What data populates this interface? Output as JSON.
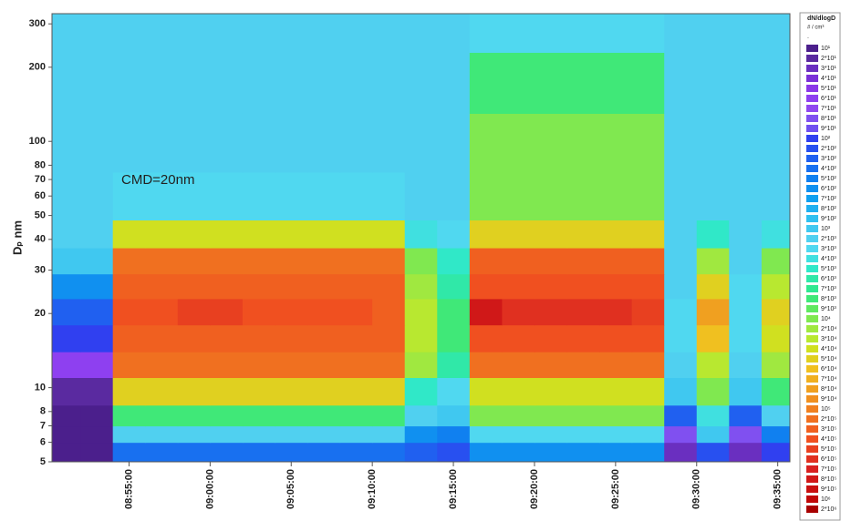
{
  "chart_data": {
    "type": "heatmap",
    "annotation": "CMD=20nm",
    "ylabel": "Dₚ nm",
    "log_y": true,
    "xlim": [
      "08:50:15",
      "09:35:45"
    ],
    "ylim": [
      5,
      330
    ],
    "xticks": [
      "08:55:00",
      "09:00:00",
      "09:05:00",
      "09:10:00",
      "09:15:00",
      "09:20:00",
      "09:25:00",
      "09:30:00",
      "09:35:00"
    ],
    "yticks": [
      5,
      6,
      7,
      8,
      10,
      20,
      30,
      40,
      50,
      60,
      70,
      80,
      100,
      200,
      300
    ],
    "x_edges": [
      "08:48:00",
      "08:50:00",
      "08:52:00",
      "08:54:00",
      "08:56:00",
      "08:58:00",
      "09:00:00",
      "09:02:00",
      "09:04:00",
      "09:06:00",
      "09:08:00",
      "09:10:00",
      "09:12:00",
      "09:14:00",
      "09:16:00",
      "09:18:00",
      "09:20:00",
      "09:22:00",
      "09:24:00",
      "09:26:00",
      "09:28:00",
      "09:30:00",
      "09:32:00",
      "09:34:00",
      "09:36:00"
    ],
    "y_edges": [
      5,
      6,
      7,
      8.5,
      11,
      14,
      18,
      23,
      29,
      37,
      48,
      75,
      130,
      230,
      330
    ],
    "z": [
      [
        15,
        15,
        15,
        400,
        400,
        400,
        400,
        400,
        400,
        400,
        400,
        400,
        300,
        200,
        600,
        600,
        600,
        600,
        600,
        600,
        30,
        200,
        30,
        100
      ],
      [
        15,
        15,
        15,
        2000,
        2000,
        2000,
        2000,
        2000,
        2000,
        2000,
        2000,
        2000,
        600,
        500,
        3000,
        3000,
        3000,
        3000,
        3000,
        3000,
        80,
        1000,
        80,
        500
      ],
      [
        15,
        15,
        15,
        8000,
        8000,
        8000,
        8000,
        8000,
        8000,
        8000,
        8000,
        8000,
        2000,
        1000,
        10000,
        10000,
        10000,
        10000,
        10000,
        10000,
        300,
        4000,
        300,
        2000
      ],
      [
        20,
        20,
        20,
        50000,
        50000,
        50000,
        50000,
        50000,
        50000,
        50000,
        50000,
        50000,
        5000,
        3000,
        40000,
        40000,
        40000,
        40000,
        40000,
        40000,
        1000,
        10000,
        1000,
        8000
      ],
      [
        60,
        60,
        60,
        200000,
        200000,
        200000,
        200000,
        200000,
        200000,
        200000,
        200000,
        200000,
        20000,
        6000,
        200000,
        200000,
        200000,
        200000,
        200000,
        200000,
        2000,
        30000,
        2000,
        20000
      ],
      [
        150,
        150,
        150,
        300000,
        300000,
        300000,
        300000,
        300000,
        300000,
        300000,
        300000,
        300000,
        30000,
        8000,
        400000,
        400000,
        400000,
        400000,
        400000,
        400000,
        3000,
        60000,
        3000,
        40000
      ],
      [
        300,
        300,
        300,
        400000,
        400000,
        500000,
        500000,
        400000,
        400000,
        400000,
        400000,
        300000,
        30000,
        8000,
        800000,
        600000,
        600000,
        600000,
        600000,
        500000,
        3000,
        80000,
        3000,
        50000
      ],
      [
        600,
        600,
        600,
        300000,
        300000,
        300000,
        300000,
        300000,
        300000,
        300000,
        300000,
        300000,
        20000,
        6000,
        400000,
        400000,
        400000,
        400000,
        400000,
        400000,
        2000,
        50000,
        3000,
        30000
      ],
      [
        1500,
        1500,
        1500,
        200000,
        200000,
        200000,
        200000,
        200000,
        200000,
        200000,
        200000,
        200000,
        10000,
        5000,
        300000,
        300000,
        300000,
        300000,
        300000,
        300000,
        2000,
        20000,
        2000,
        10000
      ],
      [
        2000,
        2000,
        2000,
        40000,
        40000,
        40000,
        40000,
        40000,
        40000,
        40000,
        40000,
        40000,
        4000,
        3000,
        50000,
        50000,
        50000,
        50000,
        50000,
        50000,
        2000,
        5000,
        2000,
        4000
      ],
      [
        2000,
        2000,
        2000,
        3000,
        3000,
        3000,
        3000,
        3000,
        3000,
        3000,
        3000,
        3000,
        2000,
        2000,
        10000,
        10000,
        10000,
        10000,
        10000,
        10000,
        2000,
        2000,
        2000,
        2000
      ],
      [
        2000,
        2000,
        2000,
        2000,
        2000,
        2000,
        2000,
        2000,
        2000,
        2000,
        2000,
        2000,
        2000,
        2000,
        10000,
        10000,
        10000,
        10000,
        10000,
        10000,
        2000,
        2000,
        2000,
        2000
      ],
      [
        2000,
        2000,
        2000,
        2000,
        2000,
        2000,
        2000,
        2000,
        2000,
        2000,
        2000,
        2000,
        2000,
        2000,
        8000,
        8000,
        8000,
        8000,
        8000,
        8000,
        2000,
        2000,
        2000,
        2000
      ],
      [
        2000,
        2000,
        2000,
        2000,
        2000,
        2000,
        2000,
        2000,
        2000,
        2000,
        2000,
        2000,
        2000,
        2000,
        3000,
        3000,
        3000,
        3000,
        3000,
        3000,
        2000,
        2000,
        2000,
        2000
      ]
    ],
    "colorbar": {
      "title": "dN/dlogD",
      "unit": "# / cm³",
      "mark": ".",
      "ticks": [
        {
          "value": 10,
          "label": "10¹"
        },
        {
          "value": 20,
          "label": "2*10¹"
        },
        {
          "value": 30,
          "label": "3*10¹"
        },
        {
          "value": 40,
          "label": "4*10¹"
        },
        {
          "value": 50,
          "label": "5*10¹"
        },
        {
          "value": 60,
          "label": "6*10¹"
        },
        {
          "value": 70,
          "label": "7*10¹"
        },
        {
          "value": 80,
          "label": "8*10¹"
        },
        {
          "value": 90,
          "label": "9*10¹"
        },
        {
          "value": 100,
          "label": "10²"
        },
        {
          "value": 200,
          "label": "2*10²"
        },
        {
          "value": 300,
          "label": "3*10²"
        },
        {
          "value": 400,
          "label": "4*10²"
        },
        {
          "value": 500,
          "label": "5*10²"
        },
        {
          "value": 600,
          "label": "6*10²"
        },
        {
          "value": 700,
          "label": "7*10²"
        },
        {
          "value": 800,
          "label": "8*10²"
        },
        {
          "value": 900,
          "label": "9*10²"
        },
        {
          "value": 1000,
          "label": "10³"
        },
        {
          "value": 2000,
          "label": "2*10³"
        },
        {
          "value": 3000,
          "label": "3*10³"
        },
        {
          "value": 4000,
          "label": "4*10³"
        },
        {
          "value": 5000,
          "label": "5*10³"
        },
        {
          "value": 6000,
          "label": "6*10³"
        },
        {
          "value": 7000,
          "label": "7*10³"
        },
        {
          "value": 8000,
          "label": "8*10³"
        },
        {
          "value": 9000,
          "label": "9*10³"
        },
        {
          "value": 10000,
          "label": "10⁴"
        },
        {
          "value": 20000,
          "label": "2*10⁴"
        },
        {
          "value": 30000,
          "label": "3*10⁴"
        },
        {
          "value": 40000,
          "label": "4*10⁴"
        },
        {
          "value": 50000,
          "label": "5*10⁴"
        },
        {
          "value": 60000,
          "label": "6*10⁴"
        },
        {
          "value": 70000,
          "label": "7*10⁴"
        },
        {
          "value": 80000,
          "label": "8*10⁴"
        },
        {
          "value": 90000,
          "label": "9*10⁴"
        },
        {
          "value": 100000,
          "label": "10⁵"
        },
        {
          "value": 200000,
          "label": "2*10⁵"
        },
        {
          "value": 300000,
          "label": "3*10⁵"
        },
        {
          "value": 400000,
          "label": "4*10⁵"
        },
        {
          "value": 500000,
          "label": "5*10⁵"
        },
        {
          "value": 600000,
          "label": "6*10⁵"
        },
        {
          "value": 700000,
          "label": "7*10⁵"
        },
        {
          "value": 800000,
          "label": "8*10⁵"
        },
        {
          "value": 900000,
          "label": "9*10⁵"
        },
        {
          "value": 1000000,
          "label": "10⁶"
        },
        {
          "value": 2000000,
          "label": "2*10⁶"
        }
      ],
      "colors": [
        "#4b1f8c",
        "#5a2aa0",
        "#6a2fc0",
        "#7a30d8",
        "#8a38e8",
        "#8e40f0",
        "#9048f0",
        "#8050f0",
        "#7050f0",
        "#3040f0",
        "#2850f0",
        "#2060f0",
        "#1870f0",
        "#1080f0",
        "#1090f0",
        "#10a0f0",
        "#20b0f0",
        "#30c0f0",
        "#40c8f0",
        "#50d0f0",
        "#50d8f0",
        "#40e0e0",
        "#30e8c8",
        "#30e8a8",
        "#30e890",
        "#40e878",
        "#60e860",
        "#80e850",
        "#a0e840",
        "#b8e830",
        "#d0e020",
        "#e0d020",
        "#f0c020",
        "#f0b020",
        "#f0a020",
        "#f09020",
        "#f08020",
        "#f07020",
        "#f06020",
        "#f05020",
        "#e84020",
        "#e03020",
        "#d82020",
        "#d01818",
        "#c81010",
        "#c00808",
        "#a80000"
      ]
    }
  }
}
